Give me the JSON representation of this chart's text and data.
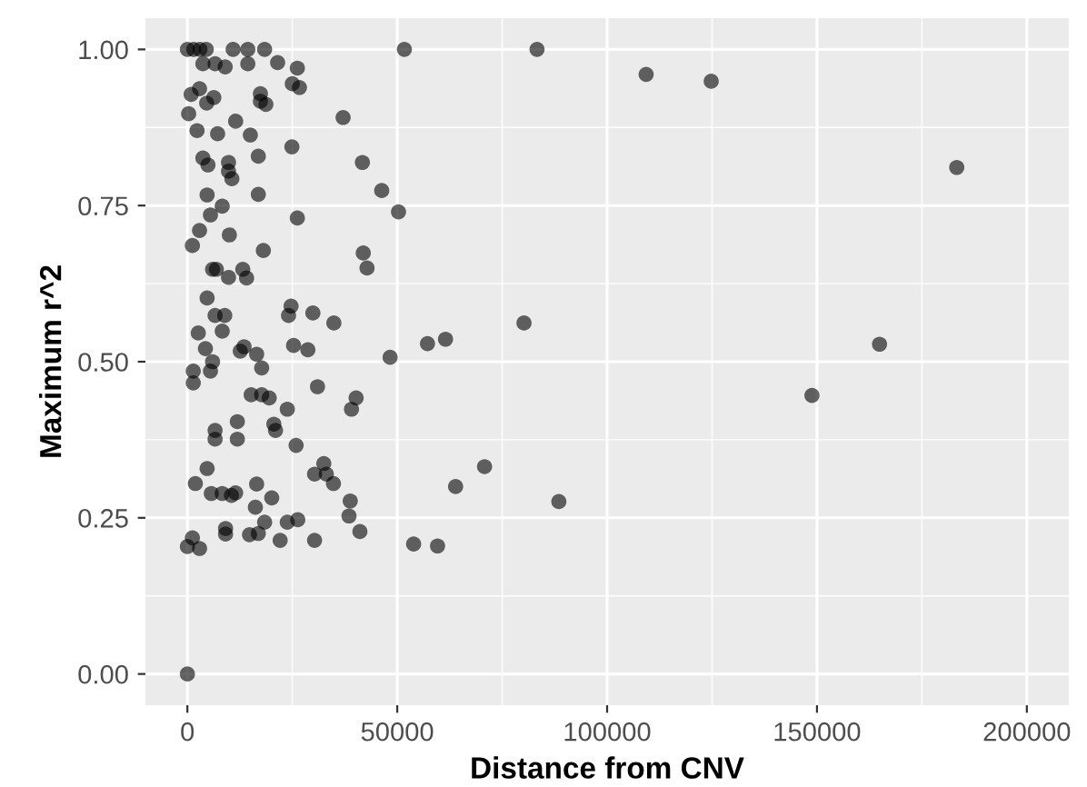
{
  "chart_data": {
    "type": "scatter",
    "xlabel": "Distance from CNV",
    "ylabel": "Maximum r^2",
    "grid": true,
    "marker": "circle",
    "legend": false,
    "xlim": [
      -10000,
      210000
    ],
    "xticks": [
      0,
      50000,
      100000,
      150000,
      200000
    ],
    "ylim": [
      -0.05,
      1.05
    ],
    "yticks": [
      {
        "value": 0,
        "label": "0.00"
      },
      {
        "value": 0.25,
        "label": "0.25"
      },
      {
        "value": 0.5,
        "label": "0.50"
      },
      {
        "value": 0.75,
        "label": "0.75"
      },
      {
        "value": 1,
        "label": "1.00"
      }
    ],
    "series": [
      {
        "color": "#000000",
        "x": [
          0,
          1500,
          3000,
          4500,
          10900,
          14400,
          18400,
          51700,
          3700,
          6600,
          9000,
          14400,
          21500,
          26200,
          25000,
          26700,
          2900,
          900,
          6300,
          4600,
          17400,
          17400,
          18700,
          300,
          37100,
          2300,
          7200,
          11500,
          15000,
          24900,
          3700,
          4900,
          9800,
          9800,
          10600,
          16900,
          41700,
          46300,
          4700,
          16900,
          8300,
          5500,
          50300,
          26200,
          2900,
          1200,
          10000,
          18100,
          41900,
          42800,
          6000,
          6900,
          9800,
          13200,
          14100,
          4700,
          6600,
          8900,
          24700,
          24100,
          29900,
          34900,
          2600,
          8300,
          4300,
          12600,
          13500,
          16500,
          25300,
          28700,
          57200,
          61500,
          48300,
          6000,
          1400,
          5500,
          1400,
          17700,
          31000,
          15200,
          17700,
          19500,
          40200,
          39100,
          23800,
          11900,
          6600,
          6600,
          11900,
          20600,
          21000,
          25900,
          4700,
          1900,
          5700,
          8300,
          10500,
          11500,
          16500,
          20100,
          16200,
          32500,
          30300,
          33100,
          34800,
          38800,
          38500,
          41100,
          18400,
          23800,
          26300,
          14800,
          16900,
          22100,
          30300,
          9100,
          9100,
          1200,
          0,
          2900,
          63900,
          70800,
          53900,
          59600,
          0,
          83300,
          109300,
          124800,
          183300,
          80200,
          164900,
          148800,
          88500
        ],
        "values": [
          1.0,
          1.0,
          1.0,
          1.0,
          1.0,
          1.0,
          1.0,
          1.0,
          0.977,
          0.977,
          0.972,
          0.977,
          0.979,
          0.97,
          0.945,
          0.939,
          0.937,
          0.928,
          0.923,
          0.914,
          0.929,
          0.917,
          0.912,
          0.897,
          0.891,
          0.87,
          0.865,
          0.885,
          0.863,
          0.844,
          0.826,
          0.815,
          0.819,
          0.805,
          0.793,
          0.829,
          0.819,
          0.774,
          0.767,
          0.768,
          0.749,
          0.735,
          0.74,
          0.73,
          0.71,
          0.686,
          0.703,
          0.678,
          0.674,
          0.65,
          0.648,
          0.648,
          0.635,
          0.648,
          0.634,
          0.602,
          0.574,
          0.574,
          0.589,
          0.574,
          0.578,
          0.562,
          0.546,
          0.549,
          0.521,
          0.517,
          0.524,
          0.512,
          0.526,
          0.519,
          0.529,
          0.536,
          0.507,
          0.5,
          0.485,
          0.485,
          0.466,
          0.49,
          0.46,
          0.447,
          0.447,
          0.442,
          0.442,
          0.424,
          0.424,
          0.404,
          0.39,
          0.376,
          0.376,
          0.4,
          0.39,
          0.366,
          0.329,
          0.305,
          0.289,
          0.289,
          0.286,
          0.29,
          0.304,
          0.282,
          0.267,
          0.337,
          0.32,
          0.32,
          0.305,
          0.277,
          0.253,
          0.228,
          0.243,
          0.243,
          0.247,
          0.223,
          0.225,
          0.214,
          0.214,
          0.233,
          0.224,
          0.218,
          0.204,
          0.201,
          0.3,
          0.332,
          0.208,
          0.205,
          0.0,
          1.0,
          0.96,
          0.949,
          0.811,
          0.562,
          0.528,
          0.446,
          0.276
        ]
      }
    ]
  }
}
